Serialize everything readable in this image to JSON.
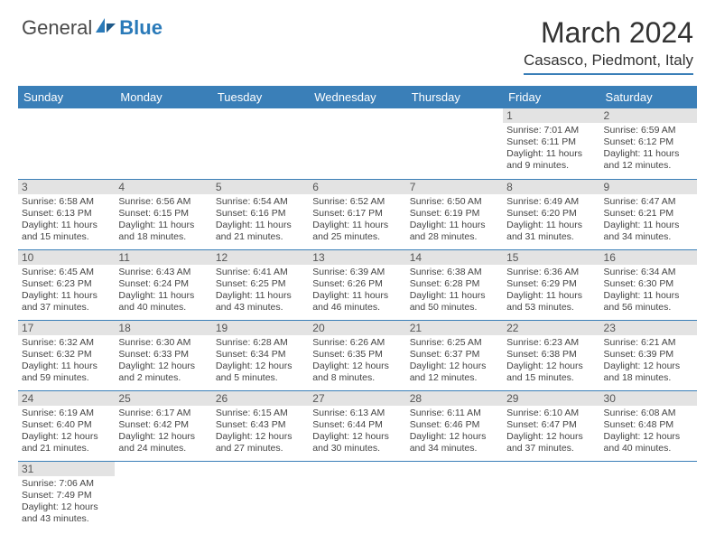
{
  "logo": {
    "text1": "General",
    "text2": "Blue"
  },
  "title": "March 2024",
  "location": "Casasco, Piedmont, Italy",
  "colors": {
    "header_bg": "#3a7fb8",
    "header_text": "#ffffff",
    "daynum_bg": "#e3e3e3",
    "border": "#3a7fb8",
    "logo_blue": "#2a7ab9"
  },
  "dayNames": [
    "Sunday",
    "Monday",
    "Tuesday",
    "Wednesday",
    "Thursday",
    "Friday",
    "Saturday"
  ],
  "weeks": [
    [
      null,
      null,
      null,
      null,
      null,
      {
        "d": "1",
        "sr": "Sunrise: 7:01 AM",
        "ss": "Sunset: 6:11 PM",
        "dl": "Daylight: 11 hours and 9 minutes."
      },
      {
        "d": "2",
        "sr": "Sunrise: 6:59 AM",
        "ss": "Sunset: 6:12 PM",
        "dl": "Daylight: 11 hours and 12 minutes."
      }
    ],
    [
      {
        "d": "3",
        "sr": "Sunrise: 6:58 AM",
        "ss": "Sunset: 6:13 PM",
        "dl": "Daylight: 11 hours and 15 minutes."
      },
      {
        "d": "4",
        "sr": "Sunrise: 6:56 AM",
        "ss": "Sunset: 6:15 PM",
        "dl": "Daylight: 11 hours and 18 minutes."
      },
      {
        "d": "5",
        "sr": "Sunrise: 6:54 AM",
        "ss": "Sunset: 6:16 PM",
        "dl": "Daylight: 11 hours and 21 minutes."
      },
      {
        "d": "6",
        "sr": "Sunrise: 6:52 AM",
        "ss": "Sunset: 6:17 PM",
        "dl": "Daylight: 11 hours and 25 minutes."
      },
      {
        "d": "7",
        "sr": "Sunrise: 6:50 AM",
        "ss": "Sunset: 6:19 PM",
        "dl": "Daylight: 11 hours and 28 minutes."
      },
      {
        "d": "8",
        "sr": "Sunrise: 6:49 AM",
        "ss": "Sunset: 6:20 PM",
        "dl": "Daylight: 11 hours and 31 minutes."
      },
      {
        "d": "9",
        "sr": "Sunrise: 6:47 AM",
        "ss": "Sunset: 6:21 PM",
        "dl": "Daylight: 11 hours and 34 minutes."
      }
    ],
    [
      {
        "d": "10",
        "sr": "Sunrise: 6:45 AM",
        "ss": "Sunset: 6:23 PM",
        "dl": "Daylight: 11 hours and 37 minutes."
      },
      {
        "d": "11",
        "sr": "Sunrise: 6:43 AM",
        "ss": "Sunset: 6:24 PM",
        "dl": "Daylight: 11 hours and 40 minutes."
      },
      {
        "d": "12",
        "sr": "Sunrise: 6:41 AM",
        "ss": "Sunset: 6:25 PM",
        "dl": "Daylight: 11 hours and 43 minutes."
      },
      {
        "d": "13",
        "sr": "Sunrise: 6:39 AM",
        "ss": "Sunset: 6:26 PM",
        "dl": "Daylight: 11 hours and 46 minutes."
      },
      {
        "d": "14",
        "sr": "Sunrise: 6:38 AM",
        "ss": "Sunset: 6:28 PM",
        "dl": "Daylight: 11 hours and 50 minutes."
      },
      {
        "d": "15",
        "sr": "Sunrise: 6:36 AM",
        "ss": "Sunset: 6:29 PM",
        "dl": "Daylight: 11 hours and 53 minutes."
      },
      {
        "d": "16",
        "sr": "Sunrise: 6:34 AM",
        "ss": "Sunset: 6:30 PM",
        "dl": "Daylight: 11 hours and 56 minutes."
      }
    ],
    [
      {
        "d": "17",
        "sr": "Sunrise: 6:32 AM",
        "ss": "Sunset: 6:32 PM",
        "dl": "Daylight: 11 hours and 59 minutes."
      },
      {
        "d": "18",
        "sr": "Sunrise: 6:30 AM",
        "ss": "Sunset: 6:33 PM",
        "dl": "Daylight: 12 hours and 2 minutes."
      },
      {
        "d": "19",
        "sr": "Sunrise: 6:28 AM",
        "ss": "Sunset: 6:34 PM",
        "dl": "Daylight: 12 hours and 5 minutes."
      },
      {
        "d": "20",
        "sr": "Sunrise: 6:26 AM",
        "ss": "Sunset: 6:35 PM",
        "dl": "Daylight: 12 hours and 8 minutes."
      },
      {
        "d": "21",
        "sr": "Sunrise: 6:25 AM",
        "ss": "Sunset: 6:37 PM",
        "dl": "Daylight: 12 hours and 12 minutes."
      },
      {
        "d": "22",
        "sr": "Sunrise: 6:23 AM",
        "ss": "Sunset: 6:38 PM",
        "dl": "Daylight: 12 hours and 15 minutes."
      },
      {
        "d": "23",
        "sr": "Sunrise: 6:21 AM",
        "ss": "Sunset: 6:39 PM",
        "dl": "Daylight: 12 hours and 18 minutes."
      }
    ],
    [
      {
        "d": "24",
        "sr": "Sunrise: 6:19 AM",
        "ss": "Sunset: 6:40 PM",
        "dl": "Daylight: 12 hours and 21 minutes."
      },
      {
        "d": "25",
        "sr": "Sunrise: 6:17 AM",
        "ss": "Sunset: 6:42 PM",
        "dl": "Daylight: 12 hours and 24 minutes."
      },
      {
        "d": "26",
        "sr": "Sunrise: 6:15 AM",
        "ss": "Sunset: 6:43 PM",
        "dl": "Daylight: 12 hours and 27 minutes."
      },
      {
        "d": "27",
        "sr": "Sunrise: 6:13 AM",
        "ss": "Sunset: 6:44 PM",
        "dl": "Daylight: 12 hours and 30 minutes."
      },
      {
        "d": "28",
        "sr": "Sunrise: 6:11 AM",
        "ss": "Sunset: 6:46 PM",
        "dl": "Daylight: 12 hours and 34 minutes."
      },
      {
        "d": "29",
        "sr": "Sunrise: 6:10 AM",
        "ss": "Sunset: 6:47 PM",
        "dl": "Daylight: 12 hours and 37 minutes."
      },
      {
        "d": "30",
        "sr": "Sunrise: 6:08 AM",
        "ss": "Sunset: 6:48 PM",
        "dl": "Daylight: 12 hours and 40 minutes."
      }
    ],
    [
      {
        "d": "31",
        "sr": "Sunrise: 7:06 AM",
        "ss": "Sunset: 7:49 PM",
        "dl": "Daylight: 12 hours and 43 minutes."
      },
      null,
      null,
      null,
      null,
      null,
      null
    ]
  ]
}
